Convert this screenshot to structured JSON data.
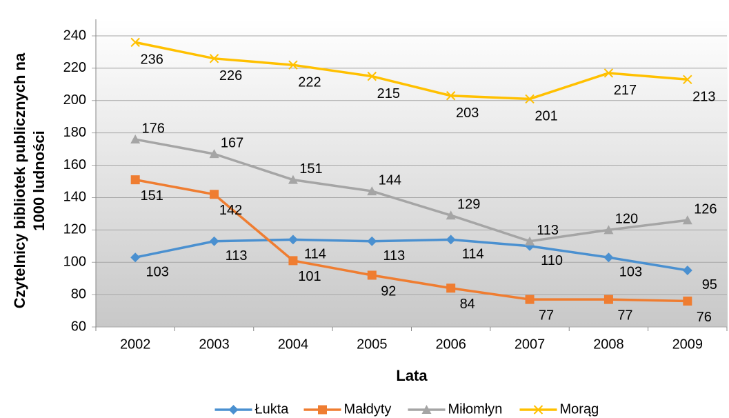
{
  "chart_data": {
    "type": "line",
    "ylabel": [
      "Czytelnicy bibliotek publicznych na",
      "1000 ludności"
    ],
    "xlabel": "Lata",
    "categories": [
      "2002",
      "2003",
      "2004",
      "2005",
      "2006",
      "2007",
      "2008",
      "2009"
    ],
    "series": [
      {
        "name": "Łukta",
        "color": "#4a90d0",
        "marker": "diamond",
        "values": [
          103,
          113,
          114,
          113,
          114,
          110,
          103,
          95
        ]
      },
      {
        "name": "Małdyty",
        "color": "#ef7d31",
        "marker": "square",
        "values": [
          151,
          142,
          101,
          92,
          84,
          77,
          77,
          76
        ]
      },
      {
        "name": "Miłomłyn",
        "color": "#a5a5a5",
        "marker": "triangle",
        "values": [
          176,
          167,
          151,
          144,
          129,
          113,
          120,
          126
        ]
      },
      {
        "name": "Morąg",
        "color": "#ffc000",
        "marker": "x",
        "values": [
          236,
          226,
          222,
          215,
          203,
          201,
          217,
          213
        ]
      }
    ],
    "ylim": [
      60,
      240
    ],
    "yticks": [
      60,
      80,
      100,
      120,
      140,
      160,
      180,
      200,
      220,
      240
    ],
    "grid": true,
    "legend": "bottom"
  }
}
